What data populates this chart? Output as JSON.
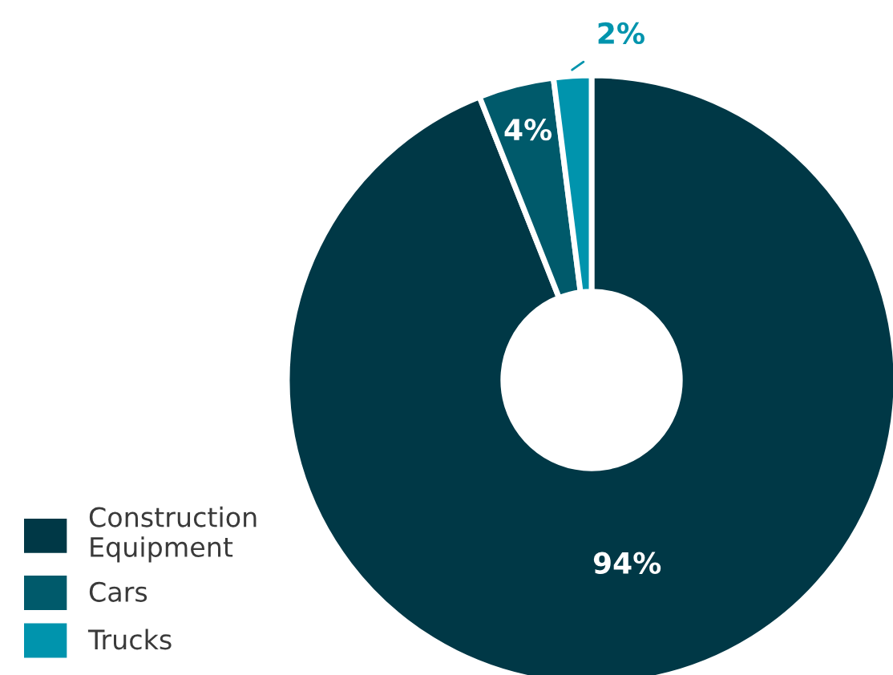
{
  "chart_data": {
    "type": "donut",
    "categories": [
      "Construction Equipment",
      "Cars",
      "Trucks"
    ],
    "values": [
      94,
      4,
      2
    ],
    "colors": [
      "#003846",
      "#005a6b",
      "#0094ad"
    ],
    "value_labels": [
      "94%",
      "4%",
      "2%"
    ],
    "legend": "bottom left"
  }
}
